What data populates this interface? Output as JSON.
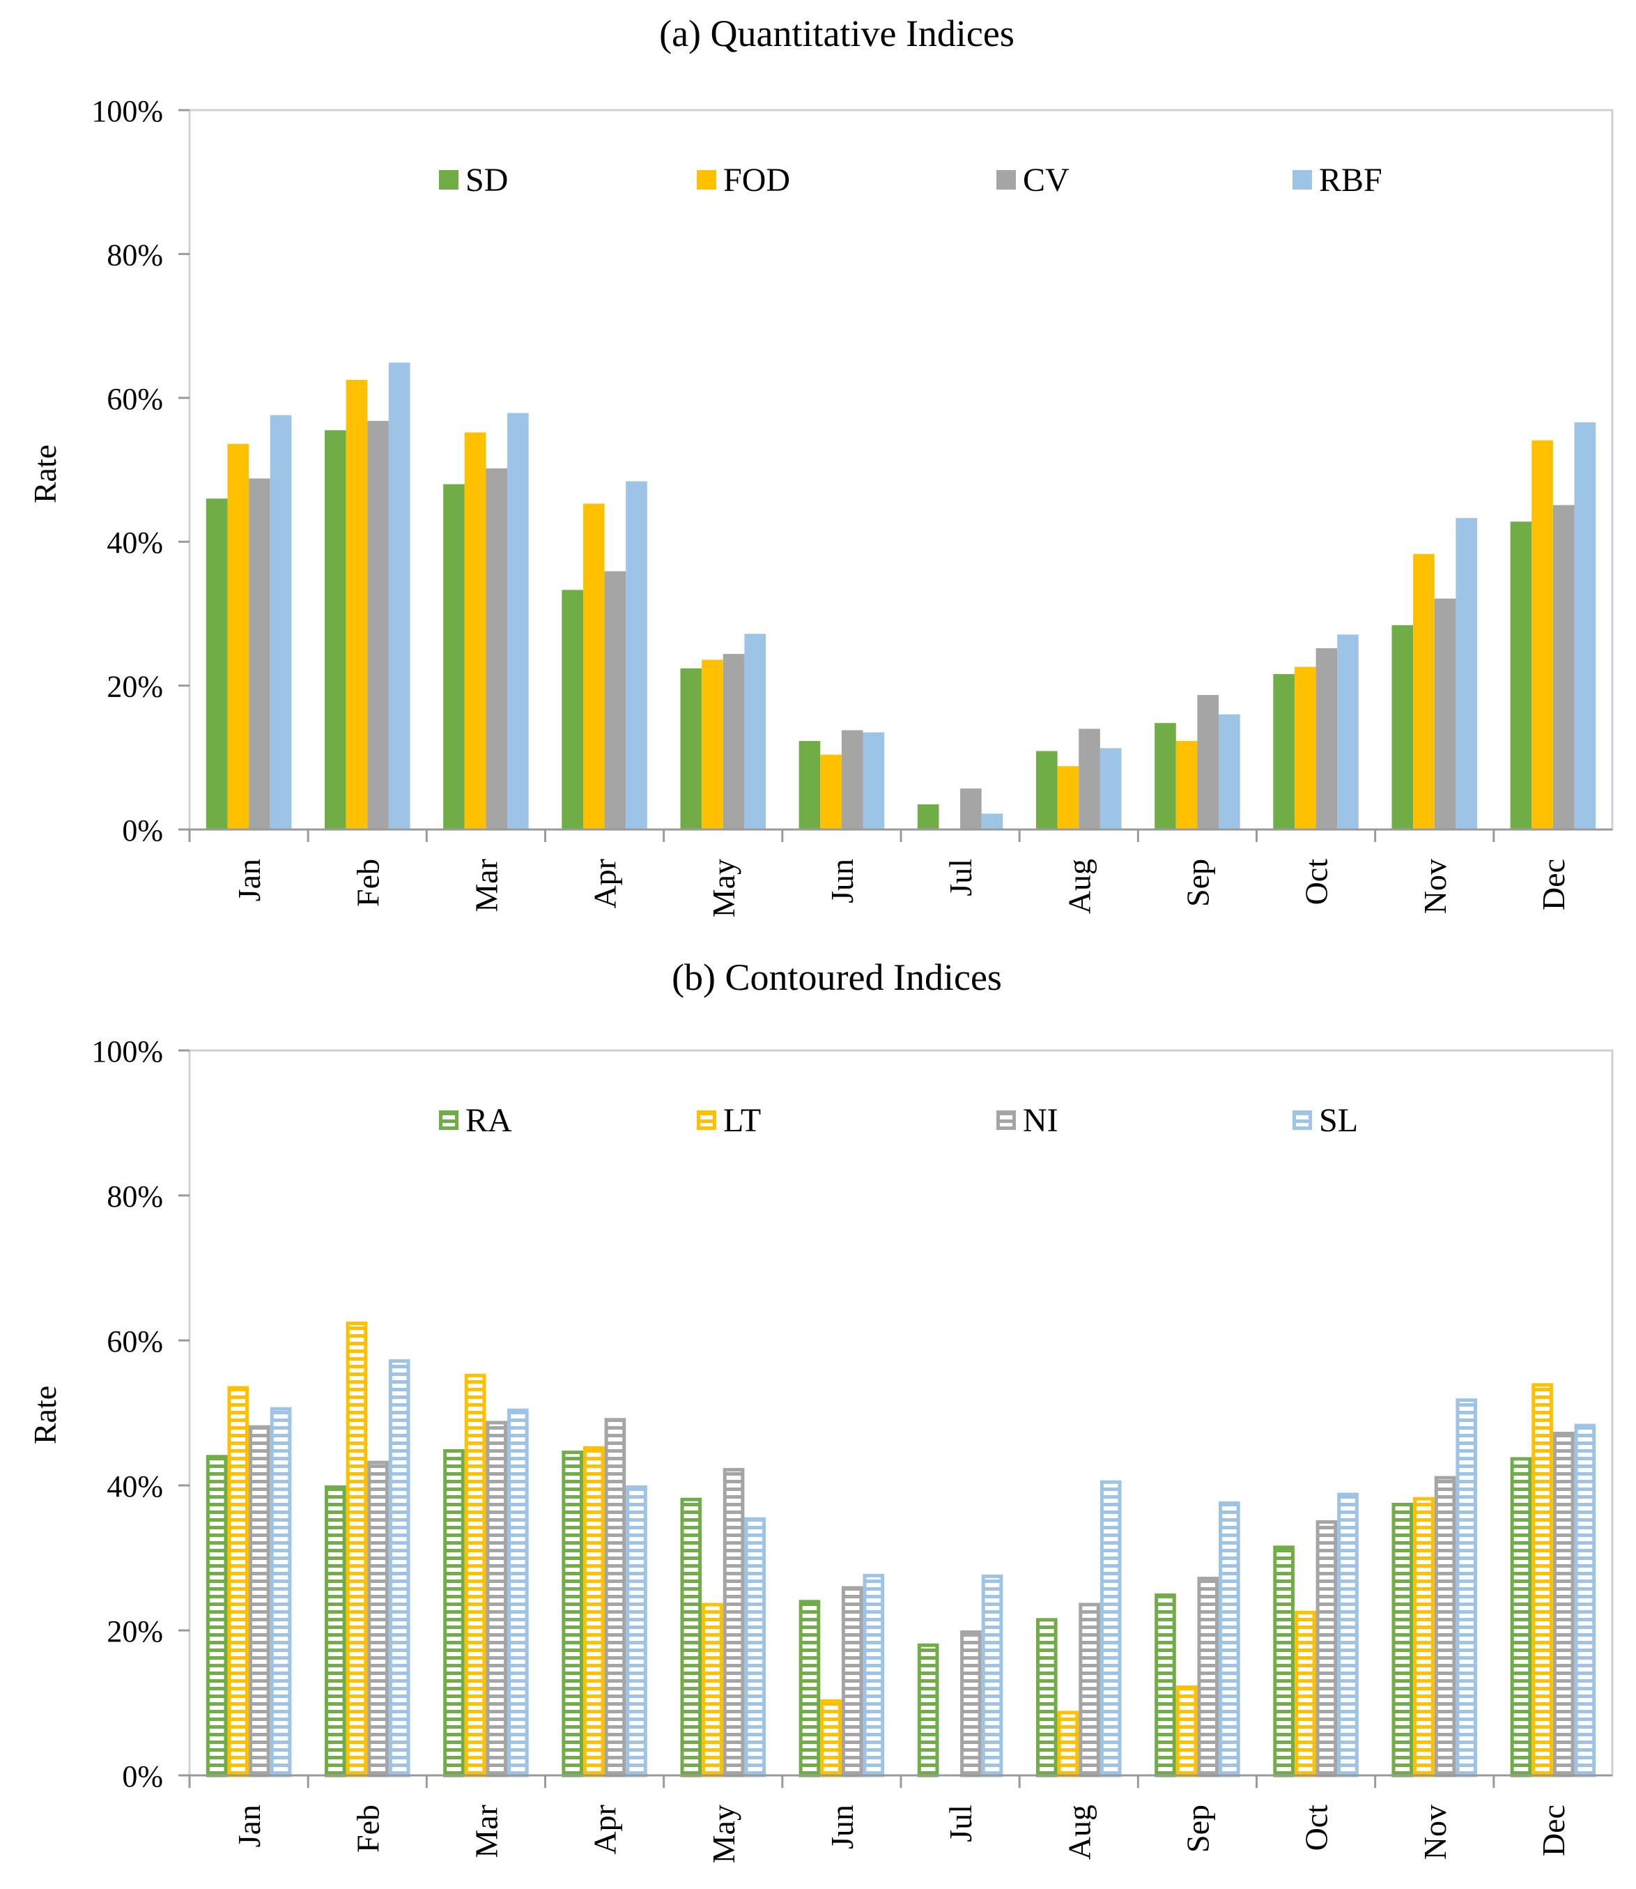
{
  "chart_data": [
    {
      "type": "bar",
      "fill_style": "solid",
      "title": "(a)  Quantitative Indices",
      "xlabel": "",
      "ylabel": "Rate",
      "ylim": [
        0,
        100
      ],
      "yticks": [
        "0%",
        "20%",
        "40%",
        "60%",
        "80%",
        "100%"
      ],
      "grid": false,
      "legend_position": "top-center",
      "categories": [
        "Jan",
        "Feb",
        "Mar",
        "Apr",
        "May",
        "Jun",
        "Jul",
        "Aug",
        "Sep",
        "Oct",
        "Nov",
        "Dec"
      ],
      "series": [
        {
          "name": "SD",
          "color": "#70AD47",
          "values": [
            46,
            55.5,
            48,
            33.3,
            22.4,
            12.3,
            3.5,
            10.9,
            14.8,
            21.6,
            28.4,
            42.8
          ]
        },
        {
          "name": "FOD",
          "color": "#FFC000",
          "values": [
            53.6,
            62.5,
            55.2,
            45.3,
            23.6,
            10.4,
            0,
            8.8,
            12.3,
            22.6,
            38.3,
            54.1
          ]
        },
        {
          "name": "CV",
          "color": "#A5A5A5",
          "values": [
            48.8,
            56.8,
            50.2,
            35.9,
            24.4,
            13.8,
            5.7,
            14,
            18.7,
            25.2,
            32.1,
            45.1
          ]
        },
        {
          "name": "RBF",
          "color": "#9DC3E6",
          "values": [
            57.6,
            64.9,
            57.9,
            48.4,
            27.2,
            13.5,
            2.2,
            11.3,
            16,
            27.1,
            43.3,
            56.6
          ]
        }
      ]
    },
    {
      "type": "bar",
      "fill_style": "horizontal-stripes",
      "title": "(b)  Contoured Indices",
      "xlabel": "",
      "ylabel": "Rate",
      "ylim": [
        0,
        100
      ],
      "yticks": [
        "0%",
        "20%",
        "40%",
        "60%",
        "80%",
        "100%"
      ],
      "grid": false,
      "legend_position": "top-center",
      "categories": [
        "Jan",
        "Feb",
        "Mar",
        "Apr",
        "May",
        "Jun",
        "Jul",
        "Aug",
        "Sep",
        "Oct",
        "Nov",
        "Dec"
      ],
      "series": [
        {
          "name": "RA",
          "color": "#70AD47",
          "values": [
            44.2,
            40,
            45,
            44.8,
            38.3,
            24.2,
            18.2,
            21.7,
            25.1,
            31.7,
            37.6,
            43.9
          ]
        },
        {
          "name": "LT",
          "color": "#FFC000",
          "values": [
            53.7,
            62.6,
            55.4,
            45.4,
            23.8,
            10.5,
            0,
            8.9,
            12.4,
            22.7,
            38.4,
            54.1
          ]
        },
        {
          "name": "NI",
          "color": "#A5A5A5",
          "values": [
            48.3,
            43.4,
            48.9,
            49.3,
            42.4,
            26.1,
            20,
            23.8,
            27.4,
            35.2,
            41.3,
            47.4
          ]
        },
        {
          "name": "SL",
          "color": "#9DC3E6",
          "values": [
            50.8,
            57.4,
            50.6,
            40,
            35.6,
            27.8,
            27.7,
            40.7,
            37.8,
            39,
            52,
            48.5
          ]
        }
      ]
    }
  ]
}
